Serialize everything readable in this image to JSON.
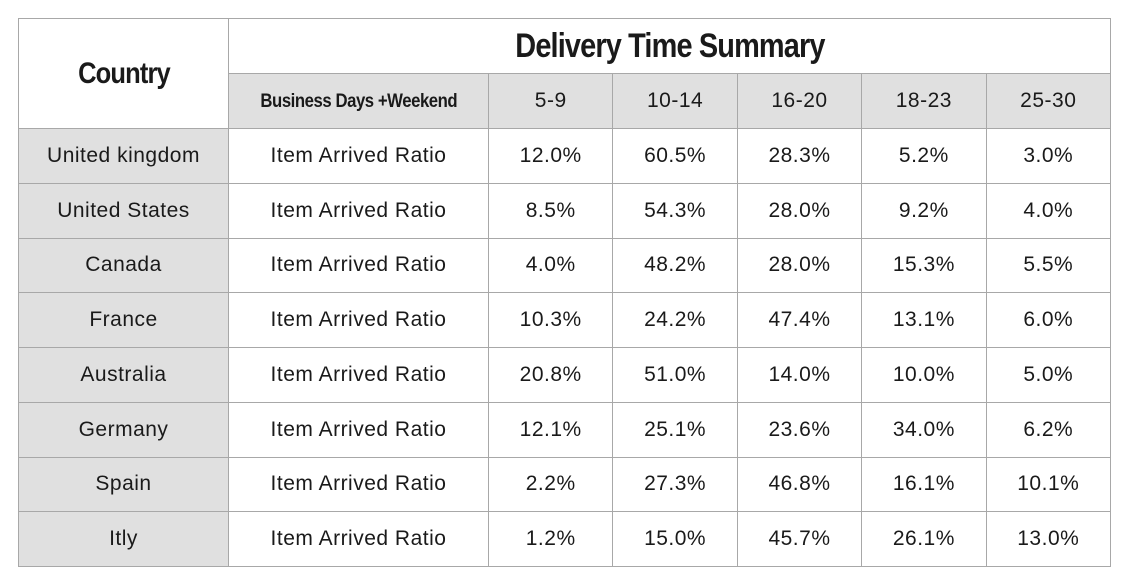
{
  "header": {
    "country": "Country",
    "title": "Delivery Time Summary",
    "subtitle": "Business Days +Weekend",
    "columns": [
      "5-9",
      "10-14",
      "16-20",
      "18-23",
      "25-30"
    ]
  },
  "rows": [
    {
      "country": "United kingdom",
      "metric": "Item Arrived Ratio",
      "values": [
        "12.0%",
        "60.5%",
        "28.3%",
        "5.2%",
        "3.0%"
      ]
    },
    {
      "country": "United States",
      "metric": "Item Arrived Ratio",
      "values": [
        "8.5%",
        "54.3%",
        "28.0%",
        "9.2%",
        "4.0%"
      ]
    },
    {
      "country": "Canada",
      "metric": "Item Arrived Ratio",
      "values": [
        "4.0%",
        "48.2%",
        "28.0%",
        "15.3%",
        "5.5%"
      ]
    },
    {
      "country": "France",
      "metric": "Item Arrived Ratio",
      "values": [
        "10.3%",
        "24.2%",
        "47.4%",
        "13.1%",
        "6.0%"
      ]
    },
    {
      "country": "Australia",
      "metric": "Item Arrived Ratio",
      "values": [
        "20.8%",
        "51.0%",
        "14.0%",
        "10.0%",
        "5.0%"
      ]
    },
    {
      "country": "Germany",
      "metric": "Item Arrived Ratio",
      "values": [
        "12.1%",
        "25.1%",
        "23.6%",
        "34.0%",
        "6.2%"
      ]
    },
    {
      "country": "Spain",
      "metric": "Item Arrived Ratio",
      "values": [
        "2.2%",
        "27.3%",
        "46.8%",
        "16.1%",
        "10.1%"
      ]
    },
    {
      "country": "Itly",
      "metric": "Item Arrived Ratio",
      "values": [
        "1.2%",
        "15.0%",
        "45.7%",
        "26.1%",
        "13.0%"
      ]
    }
  ]
}
